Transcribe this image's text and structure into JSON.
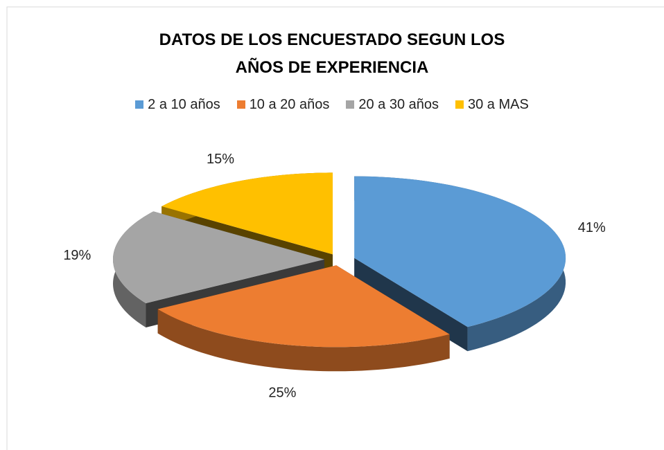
{
  "chart_data": {
    "type": "pie3d",
    "title": "DATOS DE LOS ENCUESTADO SEGUN LOS AÑOS DE EXPERIENCIA",
    "categories": [
      "2 a 10 años",
      "10 a 20 años",
      "20 a 30 años",
      "30 a MAS"
    ],
    "values": [
      41,
      25,
      19,
      15
    ],
    "value_labels": [
      "41%",
      "25%",
      "19%",
      "15%"
    ],
    "colors": [
      "#5b9bd5",
      "#ed7d31",
      "#a5a5a5",
      "#ffc000"
    ],
    "legend": "top"
  }
}
